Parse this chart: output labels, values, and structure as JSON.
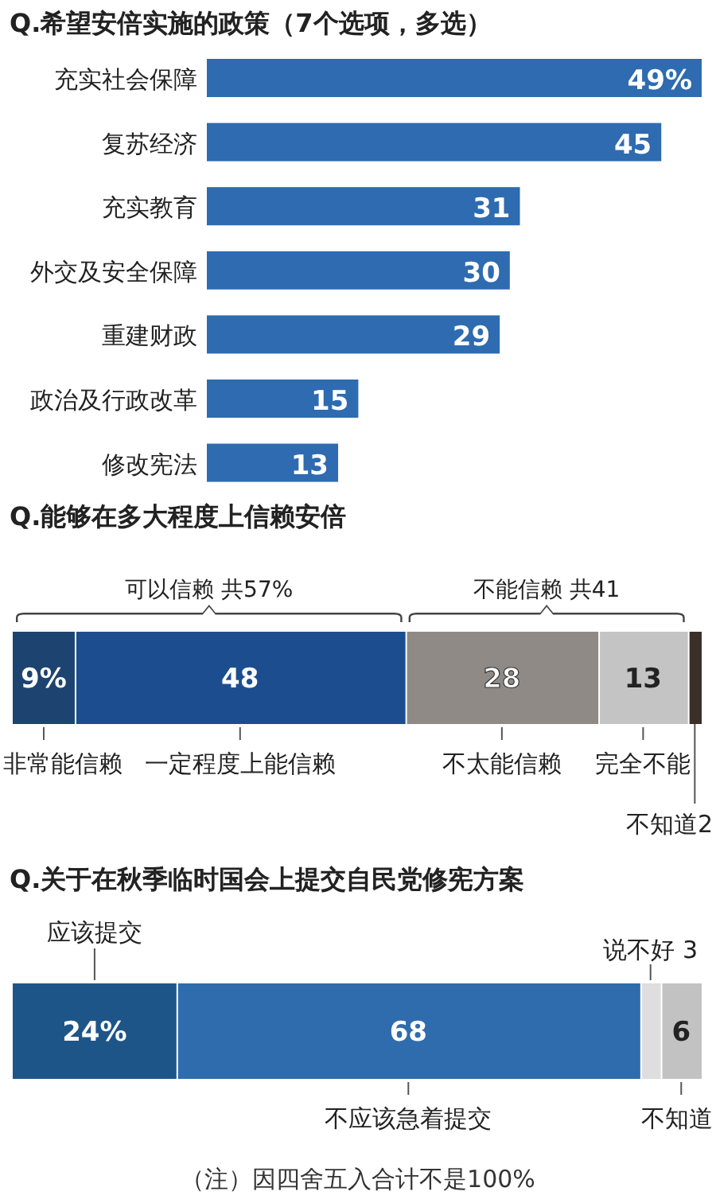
{
  "chart_data": [
    {
      "type": "bar",
      "orientation": "horizontal",
      "title": "Q.希望安倍实施的政策（7个选项，多选）",
      "categories": [
        "充实社会保障",
        "复苏经济",
        "充实教育",
        "外交及安全保障",
        "重建财政",
        "政治及行政改革",
        "修改宪法"
      ],
      "values": [
        49,
        45,
        31,
        30,
        29,
        15,
        13
      ],
      "value_labels": [
        "49%",
        "45",
        "31",
        "30",
        "29",
        "15",
        "13"
      ],
      "color": "#2e6bb0"
    },
    {
      "type": "bar",
      "orientation": "horizontal",
      "stacked": true,
      "title": "Q.能够在多大程度上信赖安倍",
      "categories": [
        null
      ],
      "series": [
        {
          "name": "非常能信赖",
          "color": "#1d4470",
          "values": [
            9
          ],
          "value_labels": [
            "9%"
          ]
        },
        {
          "name": "一定程度上能信赖",
          "color": "#1c4e8f",
          "values": [
            48
          ],
          "value_labels": [
            "48"
          ]
        },
        {
          "name": "不太能信赖",
          "color": "#8f8a86",
          "values": [
            28
          ],
          "value_labels": [
            "28"
          ]
        },
        {
          "name": "完全不能",
          "color": "#c4c4c4",
          "values": [
            13
          ],
          "value_labels": [
            "13"
          ]
        },
        {
          "name": "不知道",
          "color": "#3a3028",
          "values": [
            2
          ],
          "value_labels": [
            "2"
          ]
        }
      ],
      "annotations": [
        "可以信赖  共57%",
        "不能信赖  共41"
      ]
    },
    {
      "type": "bar",
      "orientation": "horizontal",
      "stacked": true,
      "title": "Q.关于在秋季临时国会上提交自民党修宪方案",
      "categories": [
        null
      ],
      "series": [
        {
          "name": "应该提交",
          "color": "#1e5589",
          "values": [
            24
          ],
          "value_labels": [
            "24%"
          ]
        },
        {
          "name": "不应该急着提交",
          "color": "#2f6cae",
          "values": [
            68
          ],
          "value_labels": [
            "68"
          ]
        },
        {
          "name": "说不好",
          "color": "#dedede",
          "values": [
            3
          ],
          "value_labels": [
            "3"
          ]
        },
        {
          "name": "不知道",
          "color": "#c2c2c2",
          "values": [
            6
          ],
          "value_labels": [
            "6"
          ]
        }
      ],
      "annotations": [
        "（注）因四舍五入合计不是100%"
      ]
    }
  ]
}
